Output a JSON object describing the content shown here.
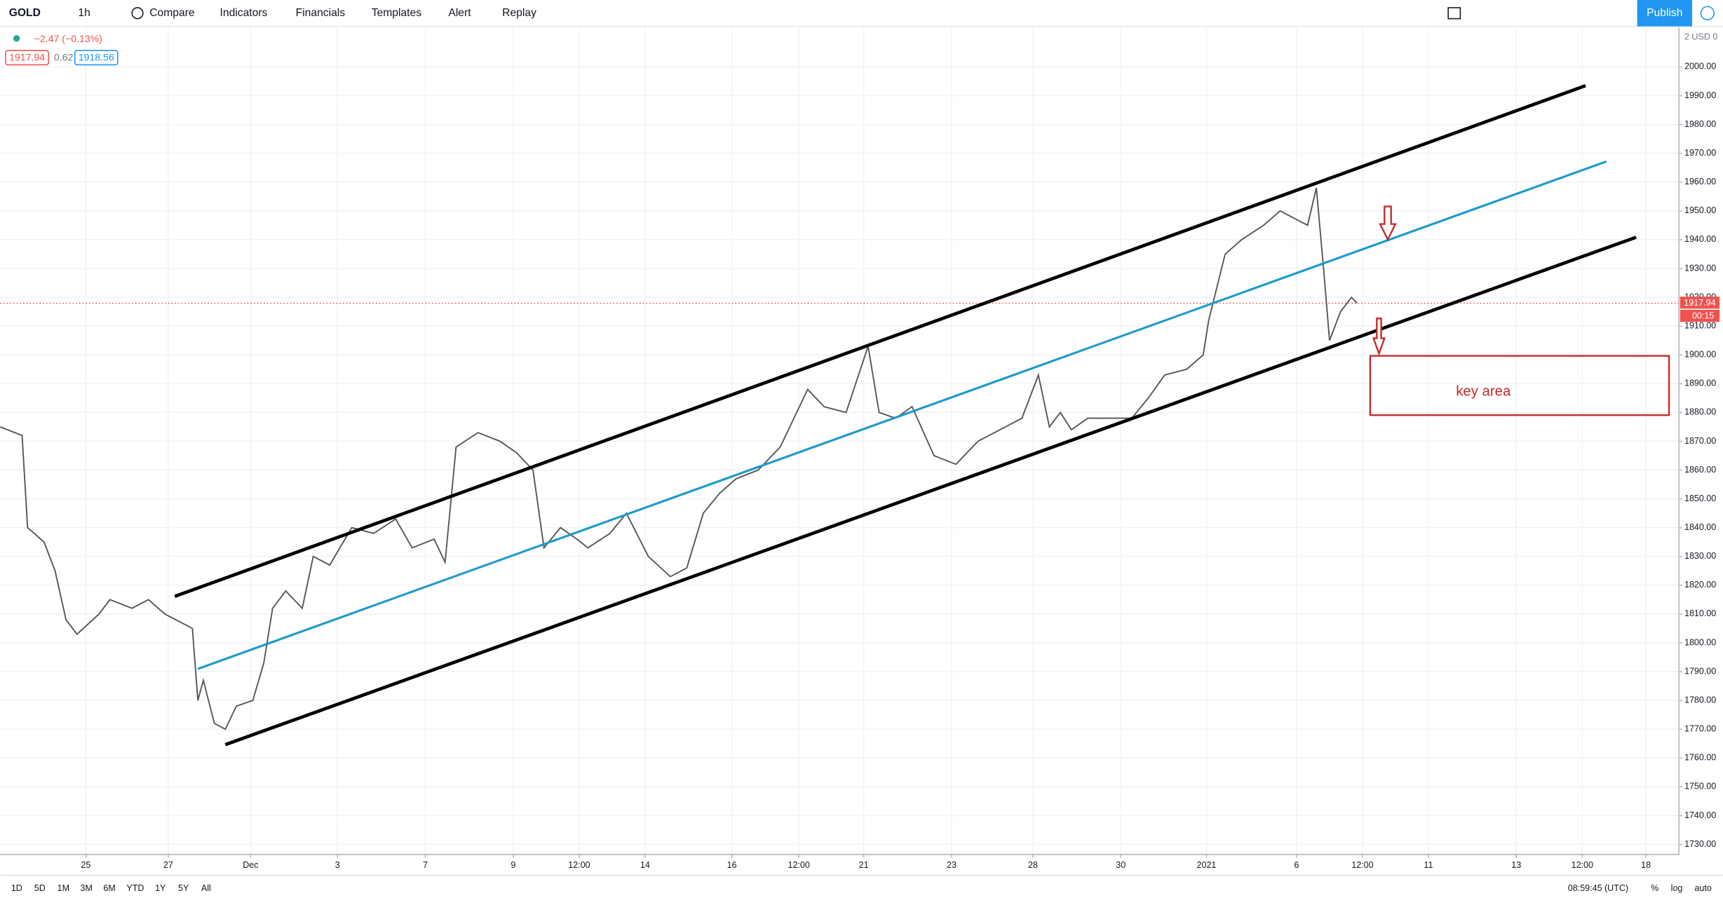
{
  "toolbar": {
    "symbol": "GOLD",
    "interval": "1h",
    "items": [
      "Compare",
      "Indicators",
      "Financials",
      "Templates",
      "Alert",
      "Replay"
    ],
    "publish": "Publish"
  },
  "legend": {
    "change": "−2.47 (−0.13%)",
    "bid": "1917.94",
    "spread": "0.62",
    "ask": "1918.56"
  },
  "axis_header": "2 USD 0",
  "countdown": "00:15",
  "annotation": "key area",
  "bottom_bar": {
    "ranges": [
      "1D",
      "5D",
      "1M",
      "3M",
      "6M",
      "YTD",
      "1Y",
      "5Y",
      "All"
    ],
    "clock": "08:59:45 (UTC)",
    "percent": "%",
    "log": "log",
    "auto": "auto"
  },
  "chart_data": {
    "type": "line",
    "color": "#555555",
    "grid": true,
    "last_price_label": "1917.94",
    "x": [
      0,
      20,
      25,
      40,
      50,
      60,
      70,
      90,
      100,
      120,
      135,
      150,
      175,
      180,
      185,
      195,
      205,
      215,
      230,
      240,
      248,
      260,
      275,
      285,
      300,
      320,
      340,
      360,
      375,
      395,
      405,
      415,
      435,
      455,
      470,
      485,
      495,
      510,
      525,
      535,
      555,
      570,
      590,
      610,
      625,
      640,
      655,
      670,
      690,
      710,
      725,
      735,
      750,
      770,
      790,
      800,
      815,
      830,
      850,
      870,
      890,
      910,
      930,
      945,
      955,
      965,
      975,
      990,
      1010,
      1030,
      1045,
      1060,
      1080,
      1095,
      1100,
      1115,
      1130,
      1150,
      1165,
      1175,
      1190,
      1198,
      1205,
      1210,
      1220,
      1230,
      1235
    ],
    "values": [
      1875,
      1872,
      1840,
      1835,
      1825,
      1808,
      1803,
      1810,
      1815,
      1812,
      1815,
      1810,
      1805,
      1780,
      1787,
      1772,
      1770,
      1778,
      1780,
      1793,
      1812,
      1818,
      1812,
      1830,
      1827,
      1840,
      1838,
      1843,
      1833,
      1836,
      1828,
      1868,
      1873,
      1870,
      1866,
      1860,
      1833,
      1840,
      1836,
      1833,
      1838,
      1845,
      1830,
      1823,
      1826,
      1845,
      1852,
      1857,
      1860,
      1868,
      1880,
      1888,
      1882,
      1880,
      1903,
      1880,
      1878,
      1882,
      1865,
      1862,
      1870,
      1874,
      1878,
      1893,
      1875,
      1880,
      1874,
      1878,
      1878,
      1878,
      1885,
      1893,
      1895,
      1900,
      1912,
      1935,
      1940,
      1945,
      1950,
      1948,
      1945,
      1958,
      1928,
      1905,
      1915,
      1920,
      1917.94
    ],
    "xlim": [
      0,
      1528
    ],
    "xticks": [
      {
        "value": 78,
        "label": "25"
      },
      {
        "value": 153,
        "label": "27"
      },
      {
        "value": 228,
        "label": "Dec"
      },
      {
        "value": 307,
        "label": "3"
      },
      {
        "value": 387,
        "label": "7"
      },
      {
        "value": 467,
        "label": "9"
      },
      {
        "value": 527,
        "label": "12:00"
      },
      {
        "value": 587,
        "label": "14"
      },
      {
        "value": 666,
        "label": "16"
      },
      {
        "value": 727,
        "label": "12:00"
      },
      {
        "value": 786,
        "label": "21"
      },
      {
        "value": 866,
        "label": "23"
      },
      {
        "value": 940,
        "label": "28"
      },
      {
        "value": 1020,
        "label": "30"
      },
      {
        "value": 1098,
        "label": "2021"
      },
      {
        "value": 1180,
        "label": "6"
      },
      {
        "value": 1240,
        "label": "12:00"
      },
      {
        "value": 1300,
        "label": "11"
      },
      {
        "value": 1380,
        "label": "13"
      },
      {
        "value": 1440,
        "label": "12:00"
      },
      {
        "value": 1498,
        "label": "18"
      }
    ],
    "ylim": [
      1726.5,
      2013.7
    ],
    "yticks": [
      {
        "value": 1730,
        "label": "1730.00"
      },
      {
        "value": 1740,
        "label": "1740.00"
      },
      {
        "value": 1750,
        "label": "1750.00"
      },
      {
        "value": 1760,
        "label": "1760.00"
      },
      {
        "value": 1770,
        "label": "1770.00"
      },
      {
        "value": 1780,
        "label": "1780.00"
      },
      {
        "value": 1790,
        "label": "1790.00"
      },
      {
        "value": 1800,
        "label": "1800.00"
      },
      {
        "value": 1810,
        "label": "1810.00"
      },
      {
        "value": 1820,
        "label": "1820.00"
      },
      {
        "value": 1830,
        "label": "1830.00"
      },
      {
        "value": 1840,
        "label": "1840.00"
      },
      {
        "value": 1850,
        "label": "1850.00"
      },
      {
        "value": 1860,
        "label": "1860.00"
      },
      {
        "value": 1870,
        "label": "1870.00"
      },
      {
        "value": 1880,
        "label": "1880.00"
      },
      {
        "value": 1890,
        "label": "1890.00"
      },
      {
        "value": 1900,
        "label": "1900.00"
      },
      {
        "value": 1910,
        "label": "1910.00"
      },
      {
        "value": 1920,
        "label": "1920.00"
      },
      {
        "value": 1930,
        "label": "1930.00"
      },
      {
        "value": 1940,
        "label": "1940.00"
      },
      {
        "value": 1950,
        "label": "1950.00"
      },
      {
        "value": 1960,
        "label": "1960.00"
      },
      {
        "value": 1970,
        "label": "1970.00"
      },
      {
        "value": 1980,
        "label": "1980.00"
      },
      {
        "value": 1990,
        "label": "1990.00"
      },
      {
        "value": 2000,
        "label": "2000.00"
      }
    ]
  }
}
